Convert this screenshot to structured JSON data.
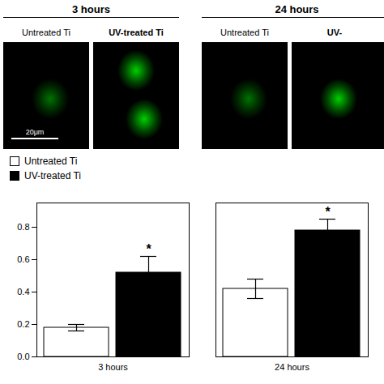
{
  "chart_data": {
    "type": "bar",
    "categories": [
      "3 hours",
      "24 hours"
    ],
    "series": [
      {
        "name": "Untreated Ti",
        "color": "#ffffff",
        "values": [
          0.18,
          0.42
        ],
        "errors": [
          0.02,
          0.06
        ]
      },
      {
        "name": "UV-treated Ti",
        "color": "#000000",
        "values": [
          0.52,
          0.78
        ],
        "errors": [
          0.1,
          0.07
        ]
      }
    ],
    "ylim": [
      0,
      0.95
    ],
    "yticks": [
      {
        "value": 0,
        "label": "0.0"
      },
      {
        "value": 0.2,
        "label": "0.2"
      },
      {
        "value": 0.4,
        "label": "0.4"
      },
      {
        "value": 0.6,
        "label": "0.6"
      },
      {
        "value": 0.8,
        "label": "0.8"
      }
    ],
    "grid": false,
    "legend": "upper left",
    "annotations": [
      {
        "text": "*",
        "category": "3 hours",
        "series": "UV-treated Ti"
      },
      {
        "text": "*",
        "category": "24 hours",
        "series": "UV-treated Ti"
      }
    ],
    "panels": [
      {
        "title": "3 hours",
        "labels": [
          "Untreated Ti",
          "UV-treated Ti"
        ]
      },
      {
        "title": "24 hours",
        "labels": [
          "Untreated Ti",
          "UV-"
        ]
      }
    ],
    "scale_bar": "20μm"
  }
}
